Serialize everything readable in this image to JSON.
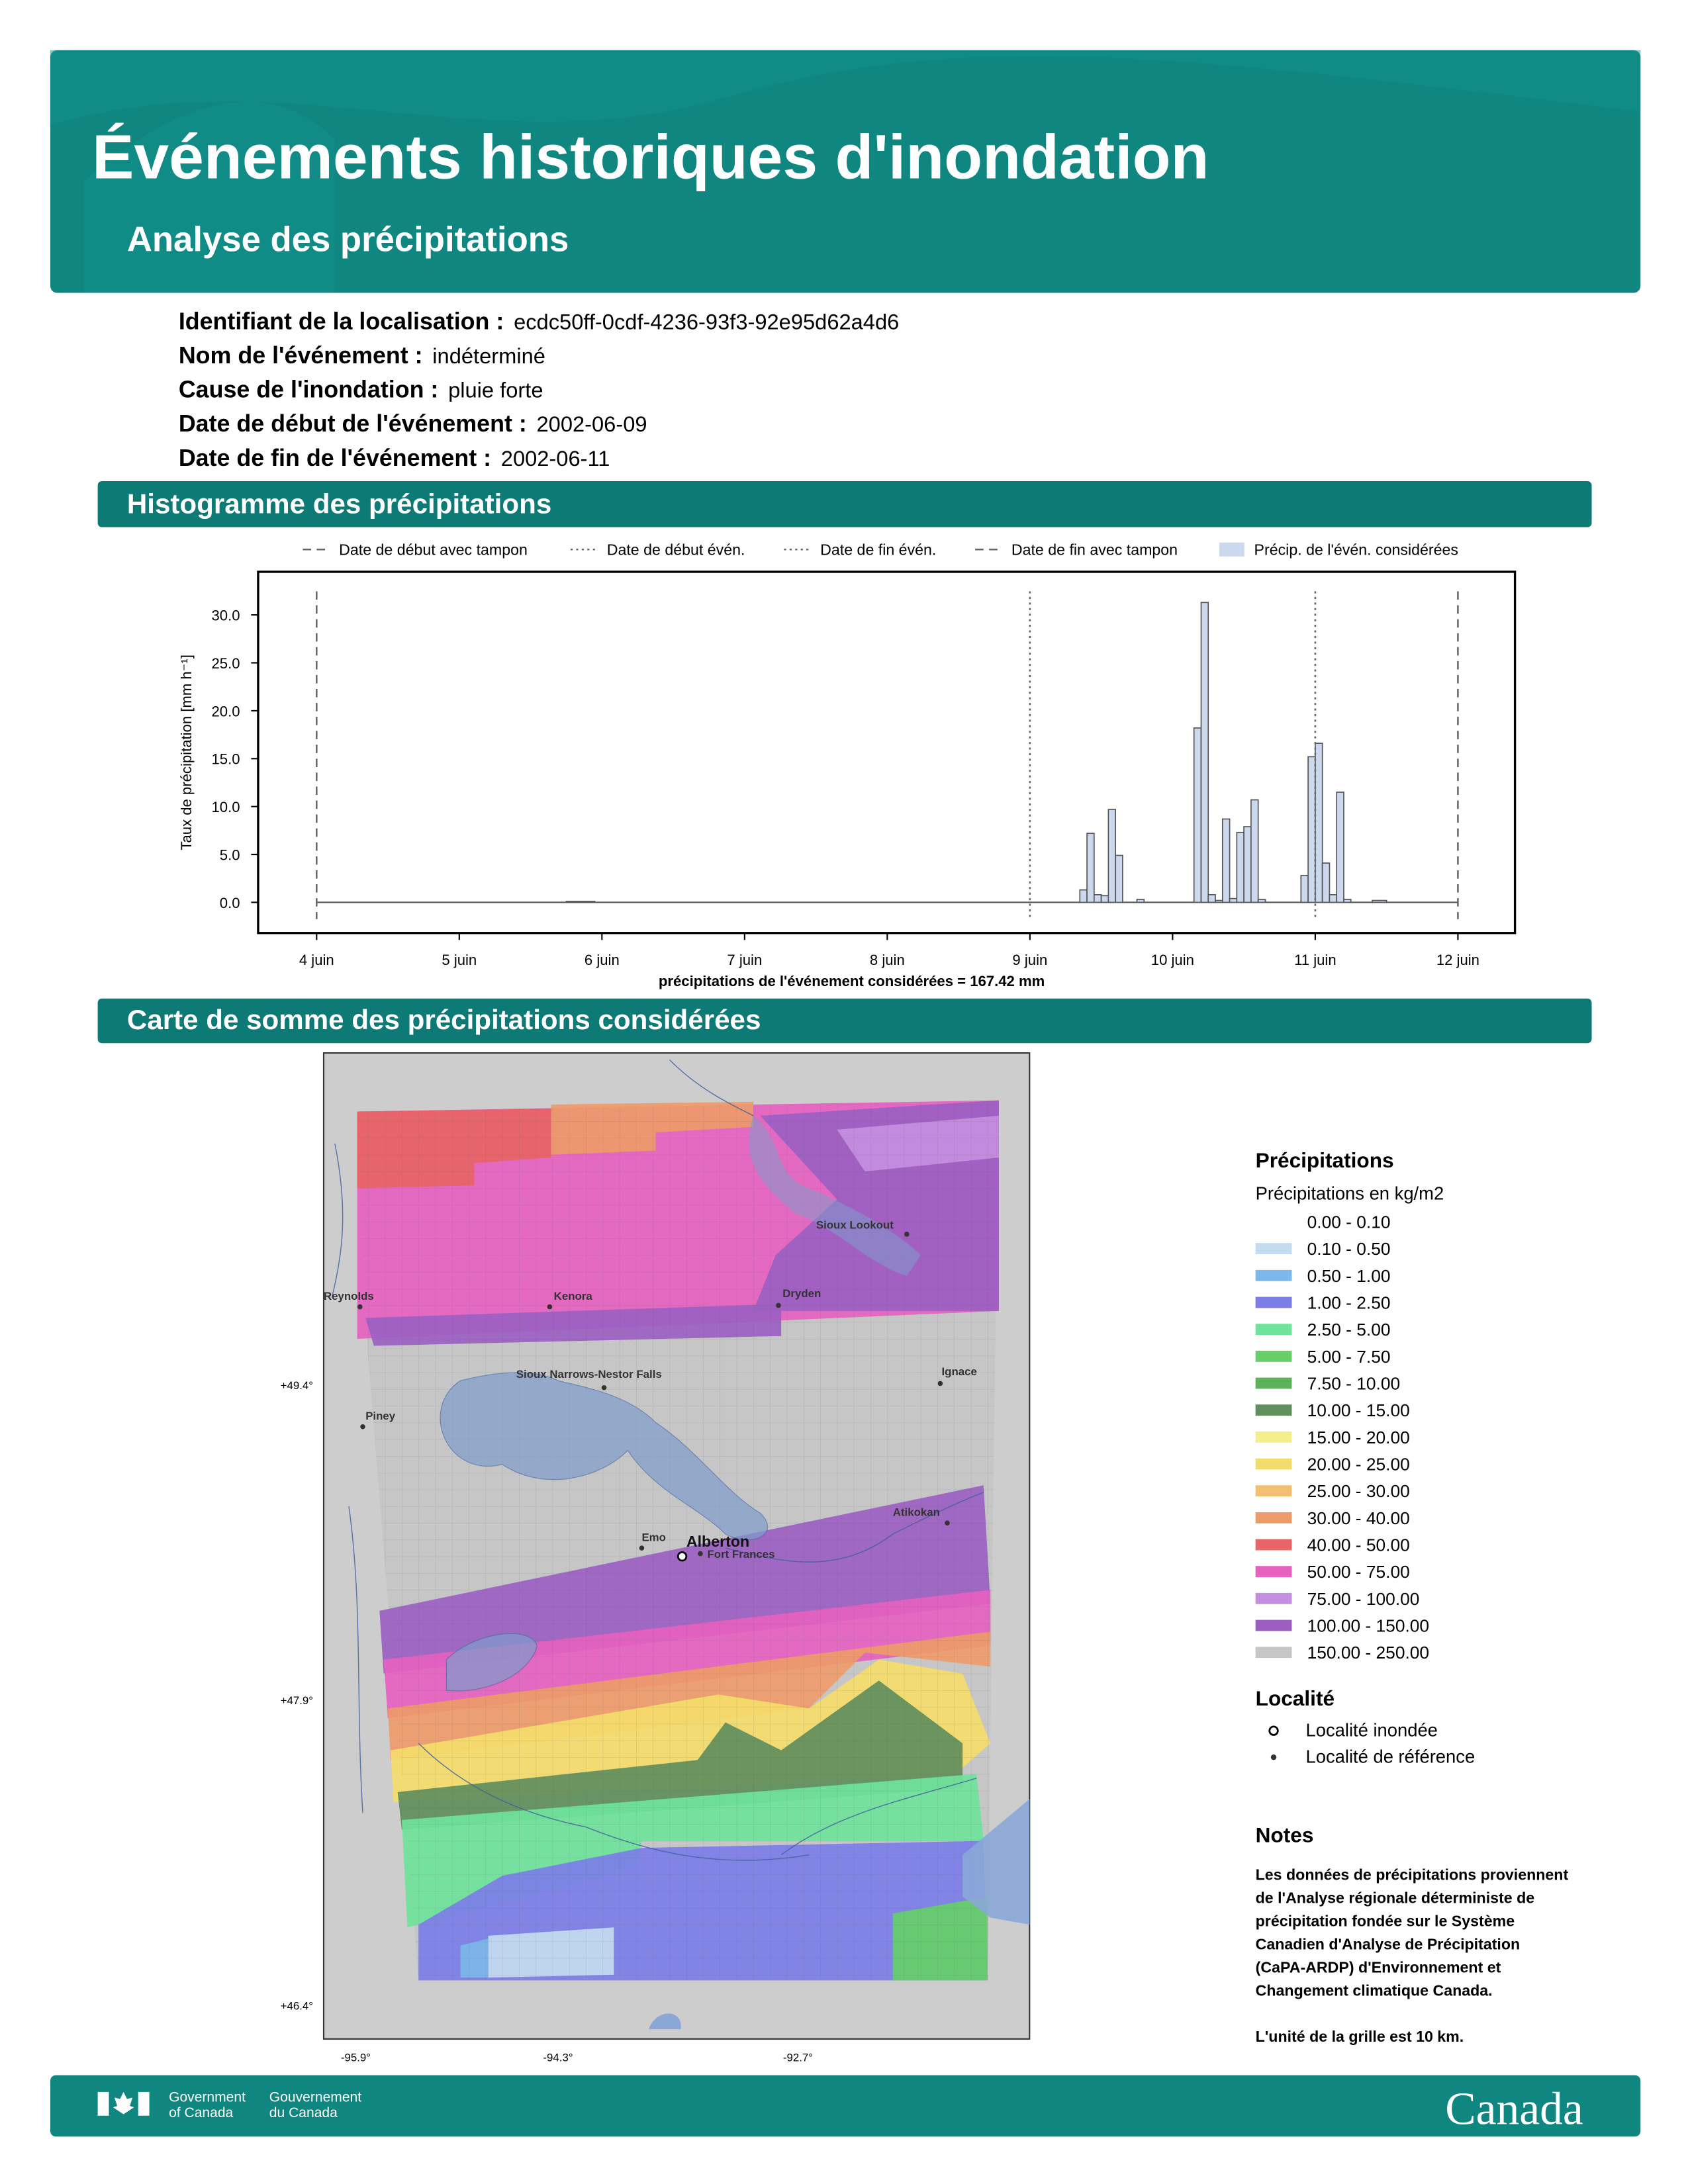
{
  "header": {
    "title": "Événements historiques d'inondation",
    "subtitle": "Analyse des précipitations"
  },
  "event_info": [
    {
      "label": "Identifiant de la localisation :",
      "value": "ecdc50ff-0cdf-4236-93f3-92e95d62a4d6"
    },
    {
      "label": "Nom de l'événement :",
      "value": "indéterminé"
    },
    {
      "label": "Cause de l'inondation :",
      "value": "pluie forte"
    },
    {
      "label": "Date de début de l'événement :",
      "value": "2002-06-09"
    },
    {
      "label": "Date de fin de l'événement :",
      "value": "2002-06-11"
    }
  ],
  "chart_data": {
    "type": "histogram",
    "title": "Histogramme des précipitations",
    "name": "Précip. de l'évén. considérées",
    "color": "#ccd8ee",
    "edge_color": "#555555",
    "bins": [
      4,
      5.75,
      5.95,
      9.35,
      9.4,
      9.45,
      9.5,
      9.55,
      9.6,
      9.65,
      9.75,
      9.8,
      10.15,
      10.2,
      10.25,
      10.3,
      10.35,
      10.4,
      10.45,
      10.5,
      10.55,
      10.6,
      10.65,
      10.9,
      10.95,
      11.0,
      11.05,
      11.1,
      11.15,
      11.2,
      11.25,
      11.4,
      11.5,
      12
    ],
    "values": [
      0,
      0.1,
      0,
      1.3,
      7.2,
      0.8,
      0.7,
      9.7,
      4.9,
      0,
      0.3,
      0,
      18.2,
      31.3,
      0.8,
      0.2,
      8.7,
      0.4,
      7.3,
      7.9,
      10.7,
      0.3,
      0,
      2.8,
      15.2,
      16.6,
      4.1,
      0.8,
      11.5,
      0.3,
      0,
      0.2,
      0
    ],
    "xlim": [
      3.59,
      12.4
    ],
    "xticks": [
      {
        "value": 4,
        "label": "4 juin"
      },
      {
        "value": 5,
        "label": "5 juin"
      },
      {
        "value": 6,
        "label": "6 juin"
      },
      {
        "value": 7,
        "label": "7 juin"
      },
      {
        "value": 8,
        "label": "8 juin"
      },
      {
        "value": 9,
        "label": "9 juin"
      },
      {
        "value": 10,
        "label": "10 juin"
      },
      {
        "value": 11,
        "label": "11 juin"
      },
      {
        "value": 12,
        "label": "12 juin"
      }
    ],
    "ylim": [
      -3.2,
      34.5
    ],
    "yticks": [
      {
        "value": 0,
        "label": "0.0"
      },
      {
        "value": 5,
        "label": "5.0"
      },
      {
        "value": 10,
        "label": "10.0"
      },
      {
        "value": 15,
        "label": "15.0"
      },
      {
        "value": 20,
        "label": "20.0"
      },
      {
        "value": 25,
        "label": "25.0"
      },
      {
        "value": 30,
        "label": "30.0"
      }
    ],
    "xlabel": "précipitations de l'événement considérées = 167.42 mm",
    "ylabel": "Taux de précipitation [mm h⁻¹]",
    "event_lines": [
      {
        "name": "Date de début avec tampon",
        "x": 4,
        "style": "dashed"
      },
      {
        "name": "Date de début évén.",
        "x": 9,
        "style": "dotted"
      },
      {
        "name": "Date de fin évén.",
        "x": 11,
        "style": "dotted"
      },
      {
        "name": "Date de fin avec tampon",
        "x": 12,
        "style": "dashed"
      }
    ]
  },
  "map": {
    "title": "Carte de somme des précipitations considérées",
    "legend_title": "Précipitations",
    "legend_subtitle": "Précipitations en kg/m2",
    "classes": [
      {
        "label": "0.00 - 0.10",
        "color": "#ffffff"
      },
      {
        "label": "0.10 - 0.50",
        "color": "#c4dbf0"
      },
      {
        "label": "0.50 - 1.00",
        "color": "#7cb8ea"
      },
      {
        "label": "1.00 - 2.50",
        "color": "#7b7ee6"
      },
      {
        "label": "2.50 - 5.00",
        "color": "#6fe39b"
      },
      {
        "label": "5.00 - 7.50",
        "color": "#66cf69"
      },
      {
        "label": "7.50 - 10.00",
        "color": "#5cb259"
      },
      {
        "label": "10.00 - 15.00",
        "color": "#608e5c"
      },
      {
        "label": "15.00 - 20.00",
        "color": "#f3ef8a"
      },
      {
        "label": "20.00 - 25.00",
        "color": "#f4dc6a"
      },
      {
        "label": "25.00 - 30.00",
        "color": "#f2c070"
      },
      {
        "label": "30.00 - 40.00",
        "color": "#ee9b6a"
      },
      {
        "label": "40.00 - 50.00",
        "color": "#e86466"
      },
      {
        "label": "50.00 - 75.00",
        "color": "#e561c0"
      },
      {
        "label": "75.00 - 100.00",
        "color": "#c48fe0"
      },
      {
        "label": "100.00 - 150.00",
        "color": "#9b5fc2"
      },
      {
        "label": "150.00 - 250.00",
        "color": "#c6c6c6"
      }
    ],
    "locality_title": "Localité",
    "locality_legend": [
      "Localité inondée",
      "Localité de référence"
    ],
    "flooded_locality": "Alberton",
    "reference_localities": [
      "Sioux Lookout",
      "Reynolds",
      "Kenora",
      "Dryden",
      "Sioux Narrows-Nestor Falls",
      "Ignace",
      "Piney",
      "Atikokan",
      "Emo",
      "Fort Frances"
    ],
    "lat_labels": [
      "+49.4°",
      "+47.9°",
      "+46.4°"
    ],
    "lon_labels": [
      "-95.9°",
      "-94.3°",
      "-92.7°"
    ]
  },
  "notes": {
    "title": "Notes",
    "lines": [
      "Les données de précipitations proviennent",
      "de l'Analyse régionale déterministe de",
      "précipitation fondée sur le Système",
      "Canadien d'Analyse de Précipitation",
      "(CaPA-ARDP) d'Environnement et",
      "Changement climatique Canada."
    ],
    "footnote": "L'unité de la grille est 10 km."
  },
  "footer": {
    "gov_en": [
      "Government",
      "of Canada"
    ],
    "gov_fr": [
      "Gouvernement",
      "du Canada"
    ],
    "wordmark": "Canada"
  }
}
